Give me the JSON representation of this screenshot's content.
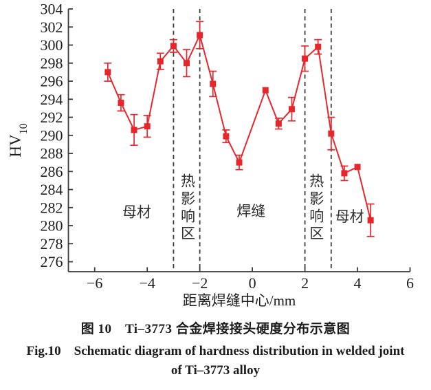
{
  "figure": {
    "caption_zh": "图 10　Ti–3773 合金焊接接头硬度分布示意图",
    "caption_en_line1": "Fig.10　Schematic diagram of hardness distribution in welded joint",
    "caption_en_line2": "of Ti–3773 alloy"
  },
  "chart_data": {
    "type": "line",
    "title": "",
    "xlabel": "距离焊缝中心/mm",
    "ylabel": "HV",
    "ylabel_sub": "10",
    "xlim": [
      -7,
      6
    ],
    "ylim": [
      274.9,
      304
    ],
    "xticks": [
      -6,
      -4,
      -2,
      0,
      2,
      4,
      6
    ],
    "yticks": [
      276,
      278,
      280,
      282,
      284,
      286,
      288,
      290,
      292,
      294,
      296,
      298,
      300,
      302,
      304
    ],
    "grid": false,
    "legend": null,
    "colors": {
      "series": "#e7262c",
      "axis": "#3a3a3a",
      "divider": "#3d3d3d",
      "text": "#1c1c1c",
      "zone_text": "#2e2e2e"
    },
    "series": [
      {
        "name": "hardness",
        "marker": "square",
        "x": [
          -5.5,
          -5.0,
          -4.5,
          -4.0,
          -3.5,
          -3.0,
          -2.5,
          -2.0,
          -1.5,
          -1.0,
          -0.5,
          0.5,
          1.0,
          1.5,
          2.0,
          2.5,
          3.0,
          3.5,
          4.0,
          4.5
        ],
        "y": [
          297.0,
          293.6,
          290.6,
          291.0,
          298.2,
          299.9,
          298.0,
          301.1,
          295.7,
          289.9,
          287.0,
          295.0,
          291.3,
          292.9,
          298.5,
          299.8,
          290.2,
          285.8,
          286.5,
          280.6
        ],
        "yerr": [
          1.0,
          0.9,
          1.7,
          1.2,
          0.9,
          0.7,
          1.5,
          1.5,
          1.4,
          0.7,
          0.8,
          0,
          0.6,
          1.3,
          1.4,
          0.8,
          1.8,
          0.8,
          0,
          1.8
        ]
      }
    ],
    "zone_dividers_x": [
      -3,
      -2,
      2,
      3
    ],
    "zone_labels": [
      {
        "text": "母材",
        "orientation": "horizontal",
        "x": -4.4,
        "y": 281.5
      },
      {
        "text": "热影响区",
        "orientation": "vertical",
        "x": -2.45,
        "y_top": 284.9,
        "y_step": 1.93
      },
      {
        "text": "焊缝",
        "orientation": "horizontal",
        "x": -0.05,
        "y": 281.6
      },
      {
        "text": "热影响区",
        "orientation": "vertical",
        "x": 2.45,
        "y_top": 284.9,
        "y_step": 1.93
      },
      {
        "text": "母材",
        "orientation": "horizontal",
        "x": 3.7,
        "y": 281.0
      }
    ]
  }
}
